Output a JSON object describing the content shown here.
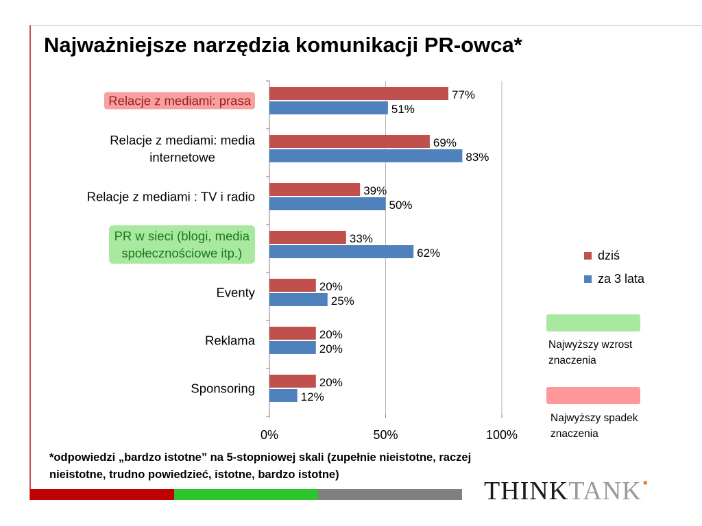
{
  "title": "Najważniejsze narzędzia komunikacji PR-owca*",
  "chart_data": {
    "type": "bar",
    "orientation": "horizontal",
    "categories": [
      "Relacje z mediami: prasa",
      "Relacje z mediami: media internetowe",
      "Relacje z mediami : TV i radio",
      "PR w sieci (blogi, media społecznościowe itp.)",
      "Eventy",
      "Reklama",
      "Sponsoring"
    ],
    "series": [
      {
        "name": "dziś",
        "color": "#c0504d",
        "values": [
          77,
          69,
          39,
          33,
          20,
          20,
          20
        ],
        "labels": [
          "77%",
          "69%",
          "39%",
          "33%",
          "20%",
          "20%",
          "20%"
        ]
      },
      {
        "name": "za 3 lata",
        "color": "#4f81bd",
        "values": [
          51,
          83,
          50,
          62,
          25,
          20,
          12
        ],
        "labels": [
          "51%",
          "83%",
          "50%",
          "62%",
          "25%",
          "20%",
          "12%"
        ]
      }
    ],
    "xlim": [
      0,
      100
    ],
    "xticks": [
      "0%",
      "50%",
      "100%"
    ],
    "grid": true,
    "legend_placement": "right",
    "highlights": {
      "red": 0,
      "green": 3
    }
  },
  "legend": {
    "items": [
      "dziś",
      "za 3 lata"
    ]
  },
  "key": {
    "green_label": "Najwyższy wzrost znaczenia",
    "red_label": "Najwyższy spadek znaczenia",
    "green_color": "#a9e8a0",
    "red_color": "#ff9999"
  },
  "footnote": "*odpowiedzi „bardzo istotne” na 5-stopniowej skali (zupełnie nieistotne, raczej nieistotne, trudno powiedzieć, istotne, bardzo  istotne)",
  "logo": {
    "think": "THINK",
    "tank": "TANK",
    "dot": "▪"
  },
  "bottom_bar_colors": [
    "#c00000",
    "#2ec42e",
    "#808080"
  ]
}
